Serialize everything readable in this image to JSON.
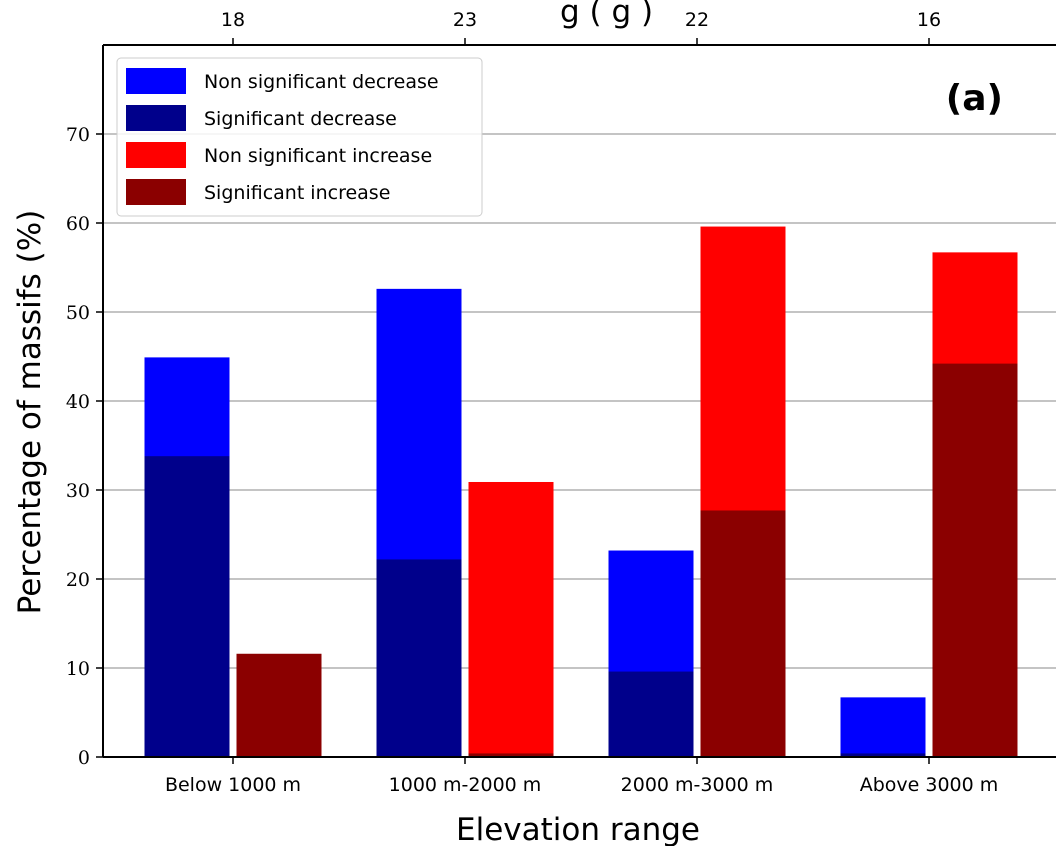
{
  "chart_data": {
    "type": "bar",
    "stacked_overlay": true,
    "panel_label": "(a)",
    "top_title_partial": "g (          g )",
    "xlabel": "Elevation range",
    "ylabel": "Percentage of massifs (%)",
    "ylim": [
      0,
      80
    ],
    "yticks": [
      0,
      10,
      20,
      30,
      40,
      50,
      60,
      70
    ],
    "grid": "horizontal",
    "legend_position": "top-left",
    "categories": [
      "Below 1000 m",
      "1000 m-2000 m",
      "2000 m-3000 m",
      "Above 3000 m"
    ],
    "top_axis_ticks": [
      "18",
      "23",
      "22",
      "16"
    ],
    "series": [
      {
        "name": "Non significant decrease",
        "color": "#0000ff",
        "group": "decrease",
        "values": [
          44.9,
          52.6,
          23.2,
          6.7
        ]
      },
      {
        "name": "Significant decrease",
        "color": "#00008b",
        "group": "decrease",
        "values": [
          33.8,
          22.2,
          9.6,
          0.4
        ]
      },
      {
        "name": "Non significant increase",
        "color": "#ff0000",
        "group": "increase",
        "values": [
          0,
          30.9,
          59.6,
          56.7
        ]
      },
      {
        "name": "Significant increase",
        "color": "#8b0000",
        "group": "increase",
        "values": [
          11.6,
          0.4,
          27.7,
          44.2
        ]
      }
    ]
  }
}
